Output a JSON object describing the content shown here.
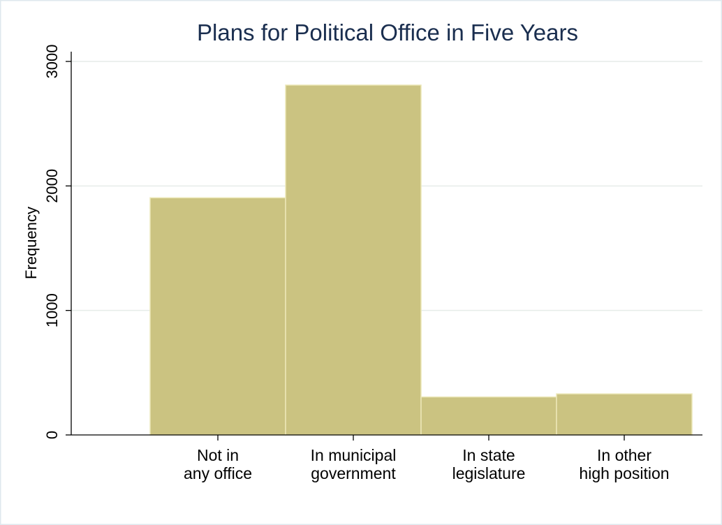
{
  "chart_data": {
    "type": "bar",
    "title": "Plans for Political Office in Five Years",
    "xlabel": "",
    "ylabel": "Frequency",
    "ylim": [
      0,
      3000
    ],
    "yticks": [
      0,
      1000,
      2000,
      3000
    ],
    "grid": true,
    "categories": [
      [
        "Not in",
        "any office"
      ],
      [
        "In municipal",
        "government"
      ],
      [
        "In state",
        "legislature"
      ],
      [
        "In other",
        "high position"
      ]
    ],
    "values": [
      1905,
      2810,
      305,
      330
    ],
    "bar_color": "#cbc381"
  }
}
